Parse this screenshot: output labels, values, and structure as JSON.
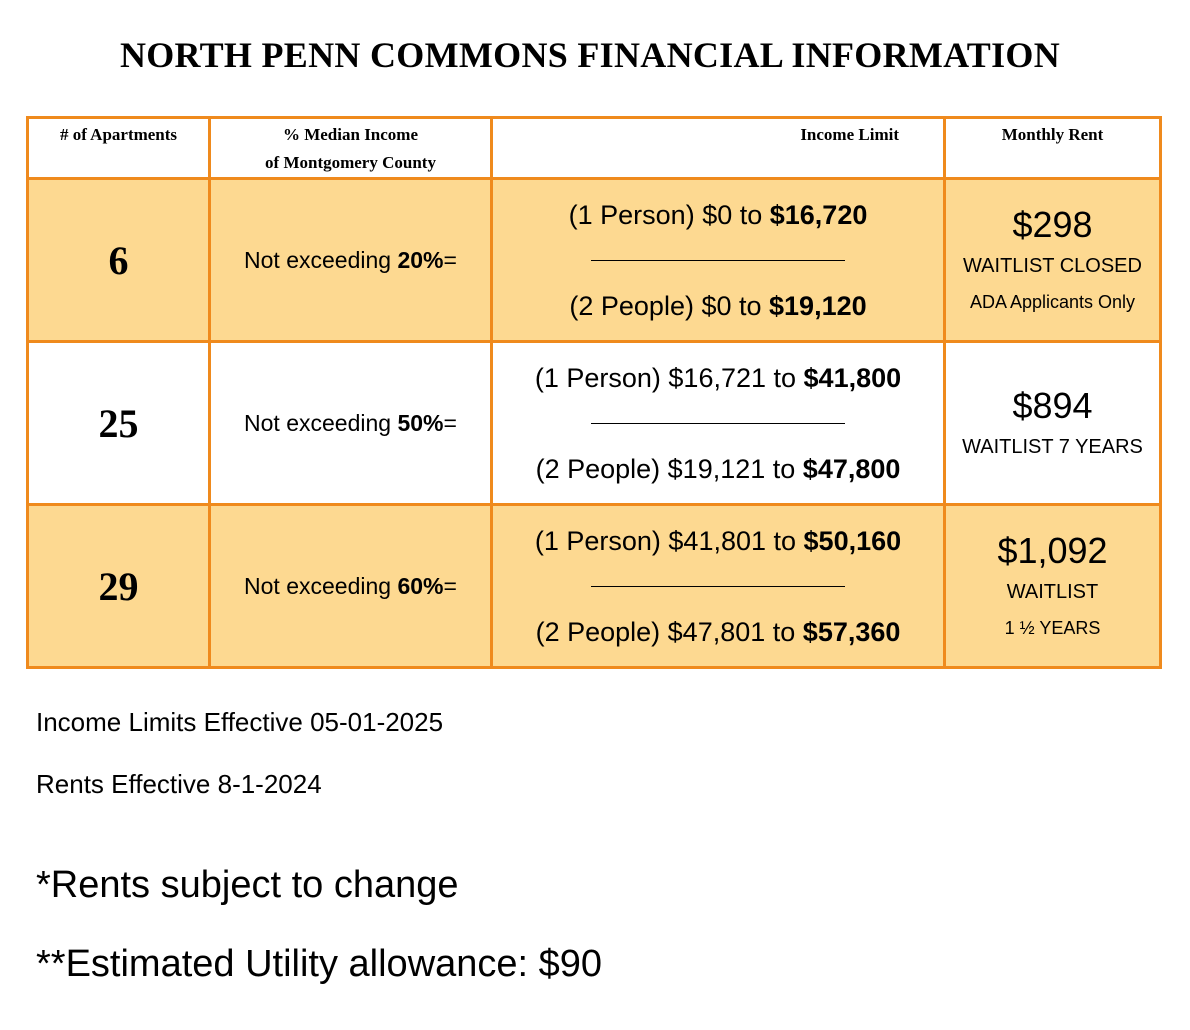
{
  "title": "NORTH PENN COMMONS FINANCIAL INFORMATION",
  "headers": {
    "apartments": "# of Apartments",
    "median_line1": "% Median Income",
    "median_line2": "of Montgomery County",
    "income_limit": "Income Limit",
    "rent": "Monthly Rent"
  },
  "rows": [
    {
      "count": "6",
      "median_prefix": "Not exceeding ",
      "median_pct": "20%",
      "median_suffix": "=",
      "one_prefix": "(1 Person) $0 to ",
      "one_max": "$16,720",
      "two_prefix": "(2 People) $0 to ",
      "two_max": "$19,120",
      "rent": "$298",
      "status": "WAITLIST CLOSED",
      "note": "ADA Applicants Only"
    },
    {
      "count": "25",
      "median_prefix": "Not exceeding ",
      "median_pct": "50%",
      "median_suffix": "=",
      "one_prefix": "(1 Person) $16,721 to ",
      "one_max": "$41,800",
      "two_prefix": "(2 People) $19,121 to ",
      "two_max": "$47,800",
      "rent": "$894",
      "status": "WAITLIST 7 YEARS",
      "note": ""
    },
    {
      "count": "29",
      "median_prefix": "Not exceeding ",
      "median_pct": "60%",
      "median_suffix": "=",
      "one_prefix": "(1 Person) $41,801 to ",
      "one_max": "$50,160",
      "two_prefix": "(2 People) $47,801 to ",
      "two_max": "$57,360",
      "rent": "$1,092",
      "status": "WAITLIST",
      "note": "1 ½ YEARS"
    }
  ],
  "footer": {
    "income_effective": "Income Limits Effective 05-01-2025",
    "rents_effective": "Rents Effective 8-1-2024",
    "rents_change": "*Rents subject to change",
    "utility": "**Estimated Utility allowance:  $90"
  },
  "colors": {
    "border": "#ef8a1d",
    "shade": "#fdd991"
  }
}
